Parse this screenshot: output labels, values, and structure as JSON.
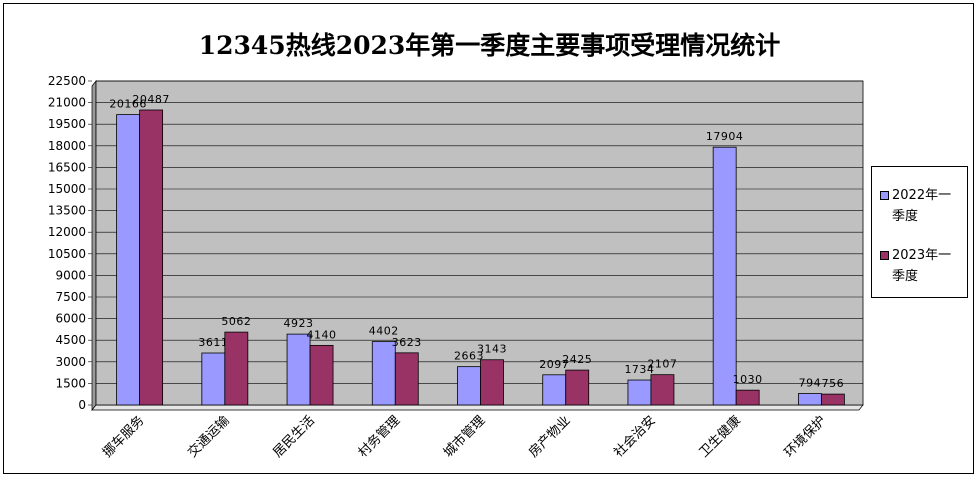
{
  "chart_data": {
    "type": "bar",
    "title": "12345热线2023年第一季度主要事项受理情况统计",
    "categories": [
      "挪车服务",
      "交通运输",
      "居民生活",
      "村务管理",
      "城市管理",
      "房产物业",
      "社会治安",
      "卫生健康",
      "环境保护"
    ],
    "series": [
      {
        "name": "2022年一季度",
        "values": [
          20166,
          3611,
          4923,
          4402,
          2663,
          2097,
          1734,
          17904,
          794
        ],
        "color": "#9999ff"
      },
      {
        "name": "2023年一季度",
        "values": [
          20487,
          5062,
          4140,
          3623,
          3143,
          2425,
          2107,
          1030,
          756
        ],
        "color": "#993366"
      }
    ],
    "data_labels": [
      [
        "20166",
        "3611",
        "4923",
        "4402",
        "2663",
        "2097",
        "1734",
        "17904",
        "794"
      ],
      [
        "20487",
        "5062",
        "4140",
        "3623",
        "3143",
        "2425",
        "2107",
        "1030",
        "756"
      ]
    ],
    "yticks": [
      "0",
      "1500",
      "3000",
      "4500",
      "6000",
      "7500",
      "9000",
      "10500",
      "12000",
      "13500",
      "15000",
      "16500",
      "18000",
      "19500",
      "21000",
      "22500"
    ],
    "ylim": [
      0,
      22500
    ],
    "xlabel": "",
    "ylabel": "",
    "grid": true,
    "plot_background": "#c0c0c0",
    "legend_position": "right"
  }
}
